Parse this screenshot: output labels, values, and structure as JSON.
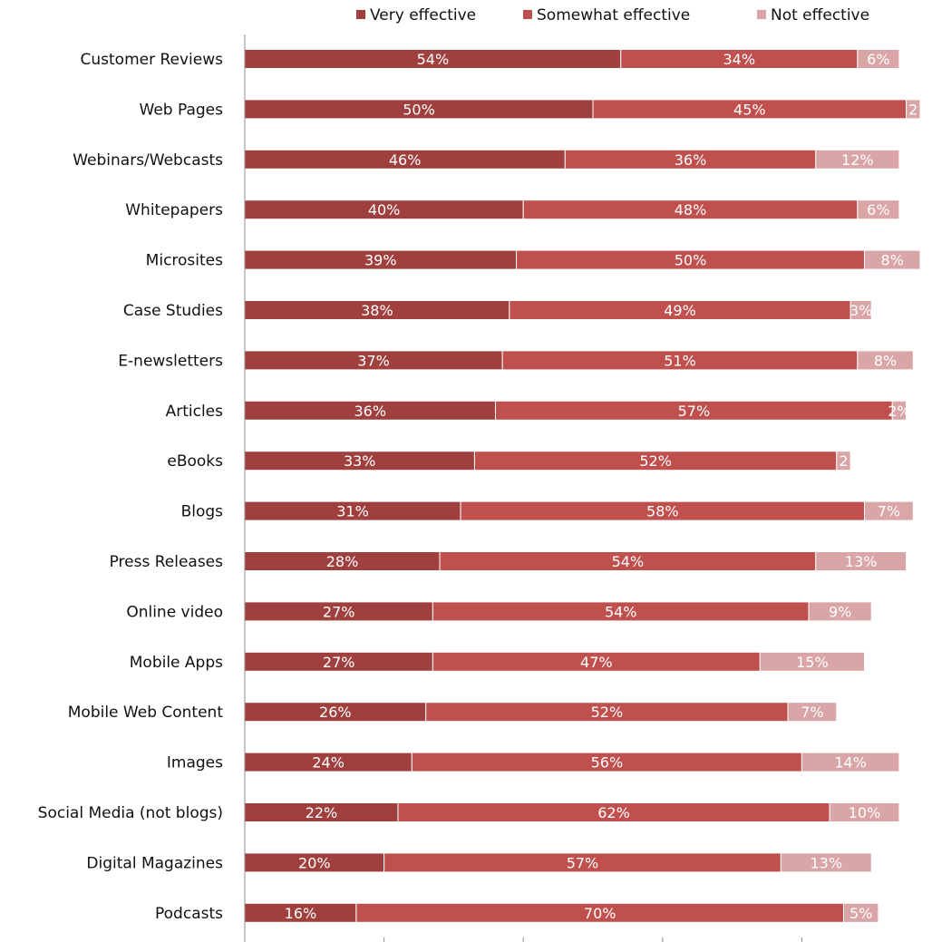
{
  "chart_data": {
    "type": "bar",
    "orientation": "horizontal",
    "stacked": true,
    "title": "",
    "xlabel": "",
    "ylabel": "",
    "xlim": [
      0,
      100
    ],
    "grid": false,
    "legend_position": "top-right",
    "categories": [
      "Customer Reviews",
      "Web Pages",
      "Webinars/Webcasts",
      "Whitepapers",
      "Microsites",
      "Case Studies",
      "E-newsletters",
      "Articles",
      "eBooks",
      "Blogs",
      "Press Releases",
      "Online video",
      "Mobile Apps",
      "Mobile Web Content",
      "Images",
      "Social Media (not blogs)",
      "Digital Magazines",
      "Podcasts"
    ],
    "series": [
      {
        "name": "Very effective",
        "color": "#a0403e",
        "values": [
          54,
          50,
          46,
          40,
          39,
          38,
          37,
          36,
          33,
          31,
          28,
          27,
          27,
          26,
          24,
          22,
          20,
          16
        ]
      },
      {
        "name": "Somewhat effective",
        "color": "#c0504d",
        "values": [
          34,
          45,
          36,
          48,
          50,
          49,
          51,
          57,
          52,
          58,
          54,
          54,
          47,
          52,
          56,
          62,
          57,
          70
        ]
      },
      {
        "name": "Not effective",
        "color": "#d9a5a6",
        "values": [
          6,
          2,
          12,
          6,
          8,
          3,
          8,
          2,
          2,
          7,
          13,
          9,
          15,
          7,
          14,
          10,
          13,
          5
        ]
      }
    ],
    "labels": [
      [
        "54%",
        "34%",
        "6%"
      ],
      [
        "50%",
        "45%",
        "2"
      ],
      [
        "46%",
        "36%",
        "12%"
      ],
      [
        "40%",
        "48%",
        "6%"
      ],
      [
        "39%",
        "50%",
        "8%"
      ],
      [
        "38%",
        "49%",
        "3%"
      ],
      [
        "37%",
        "51%",
        "8%"
      ],
      [
        "36%",
        "57%",
        "2%"
      ],
      [
        "33%",
        "52%",
        "2"
      ],
      [
        "31%",
        "58%",
        "7%"
      ],
      [
        "28%",
        "54%",
        "13%"
      ],
      [
        "27%",
        "54%",
        "9%"
      ],
      [
        "27%",
        "47%",
        "15%"
      ],
      [
        "26%",
        "52%",
        "7%"
      ],
      [
        "24%",
        "56%",
        "14%"
      ],
      [
        "22%",
        "62%",
        "10%"
      ],
      [
        "20%",
        "57%",
        "13%"
      ],
      [
        "16%",
        "70%",
        "5%"
      ]
    ]
  }
}
